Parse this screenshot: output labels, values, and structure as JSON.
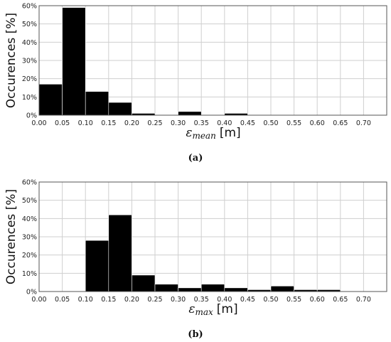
{
  "chart_data": [
    {
      "type": "bar",
      "caption": "(a)",
      "ylabel": "Occurences [%]",
      "xlabel": {
        "symbol": "ε",
        "subscript": "mean",
        "unit": "[m]"
      },
      "xlim": [
        0,
        0.75
      ],
      "ylim": [
        0,
        60
      ],
      "x_ticks": [
        "0.00",
        "0.05",
        "0.10",
        "0.15",
        "0.20",
        "0.25",
        "0.30",
        "0.35",
        "0.40",
        "0.45",
        "0.50",
        "0.55",
        "0.60",
        "0.65",
        "0.70"
      ],
      "y_ticks": [
        "0%",
        "10%",
        "20%",
        "30%",
        "40%",
        "50%",
        "60%"
      ],
      "grid": true,
      "bins": [
        {
          "from": 0.0,
          "to": 0.05,
          "value": 17
        },
        {
          "from": 0.05,
          "to": 0.1,
          "value": 59
        },
        {
          "from": 0.1,
          "to": 0.15,
          "value": 13
        },
        {
          "from": 0.15,
          "to": 0.2,
          "value": 7
        },
        {
          "from": 0.2,
          "to": 0.25,
          "value": 1
        },
        {
          "from": 0.3,
          "to": 0.35,
          "value": 2
        },
        {
          "from": 0.4,
          "to": 0.45,
          "value": 1
        }
      ]
    },
    {
      "type": "bar",
      "caption": "(b)",
      "ylabel": "Occurences [%]",
      "xlabel": {
        "symbol": "ε",
        "subscript": "max",
        "unit": "[m]"
      },
      "xlim": [
        0,
        0.75
      ],
      "ylim": [
        0,
        60
      ],
      "x_ticks": [
        "0.00",
        "0.05",
        "0.10",
        "0.15",
        "0.20",
        "0.25",
        "0.30",
        "0.35",
        "0.40",
        "0.45",
        "0.50",
        "0.55",
        "0.60",
        "0.65",
        "0.70"
      ],
      "y_ticks": [
        "0%",
        "10%",
        "20%",
        "30%",
        "40%",
        "50%",
        "60%"
      ],
      "grid": true,
      "bins": [
        {
          "from": 0.1,
          "to": 0.15,
          "value": 28
        },
        {
          "from": 0.15,
          "to": 0.2,
          "value": 42
        },
        {
          "from": 0.2,
          "to": 0.25,
          "value": 9
        },
        {
          "from": 0.25,
          "to": 0.3,
          "value": 4
        },
        {
          "from": 0.3,
          "to": 0.35,
          "value": 2
        },
        {
          "from": 0.35,
          "to": 0.4,
          "value": 4
        },
        {
          "from": 0.4,
          "to": 0.45,
          "value": 2
        },
        {
          "from": 0.45,
          "to": 0.5,
          "value": 1
        },
        {
          "from": 0.5,
          "to": 0.55,
          "value": 3
        },
        {
          "from": 0.55,
          "to": 0.6,
          "value": 1
        },
        {
          "from": 0.6,
          "to": 0.65,
          "value": 1
        }
      ]
    }
  ]
}
